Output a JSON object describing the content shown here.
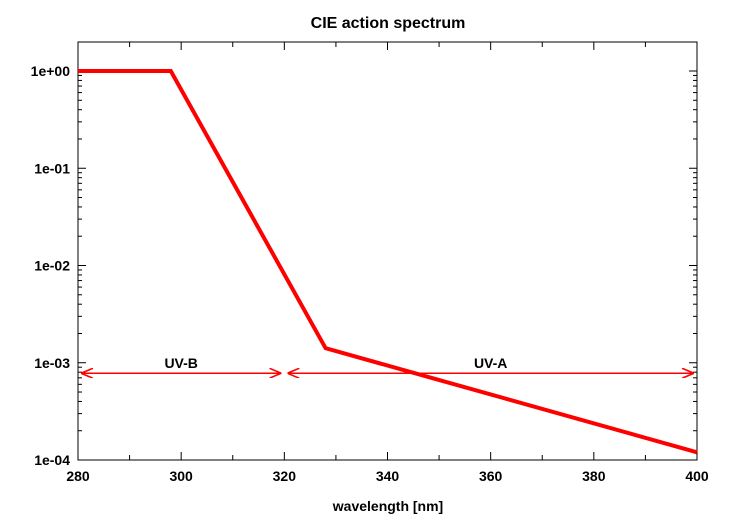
{
  "chart_data": {
    "type": "line",
    "title": "CIE action spectrum",
    "xlabel": "wavelength [nm]",
    "ylabel": "",
    "xscale": "linear",
    "yscale": "log",
    "xlim": [
      280,
      400
    ],
    "ylim": [
      0.0001,
      2
    ],
    "xticks": [
      280,
      300,
      320,
      340,
      360,
      380,
      400
    ],
    "xtick_labels": [
      "280",
      "300",
      "320",
      "340",
      "360",
      "380",
      "400"
    ],
    "yticks": [
      0.0001,
      0.001,
      0.01,
      0.1,
      1
    ],
    "ytick_labels": [
      "1e-04",
      "1e-03",
      "1e-02",
      "1e-01",
      "1e+00"
    ],
    "grid": false,
    "series": [
      {
        "name": "CIE action spectrum",
        "color": "#ff0000",
        "x": [
          280,
          298,
          328,
          400
        ],
        "y": [
          1,
          1,
          0.00141,
          0.00012
        ]
      }
    ],
    "annotations": [
      {
        "label": "UV-B",
        "x_start": 280,
        "x_end": 320,
        "y": 0.00078,
        "color": "#ff0000"
      },
      {
        "label": "UV-A",
        "x_start": 320,
        "x_end": 400,
        "y": 0.00078,
        "color": "#ff0000"
      }
    ]
  }
}
